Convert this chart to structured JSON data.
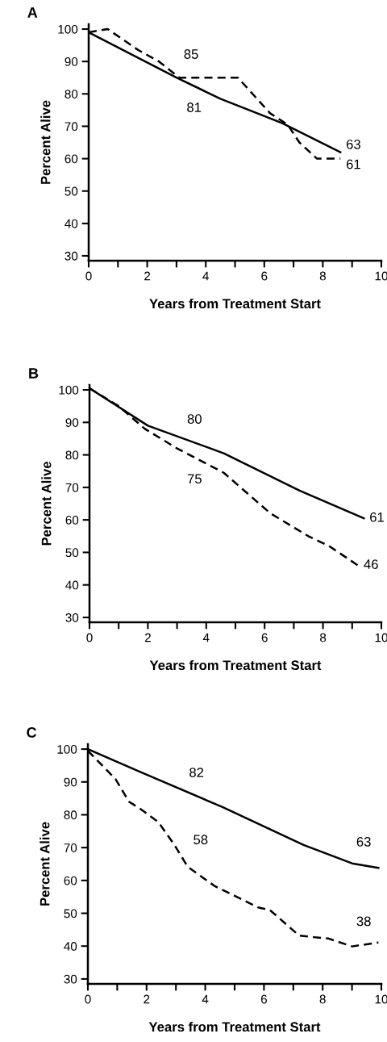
{
  "chart_data": [
    {
      "type": "line",
      "title": "A",
      "xlabel": "Years from Treatment Start",
      "ylabel": "Percent Alive",
      "xlim": [
        0,
        10
      ],
      "ylim": [
        28.5,
        101.5
      ],
      "xticks": [
        0,
        {
          "value": 1,
          "label": null
        },
        2,
        {
          "value": 3,
          "label": null
        },
        4,
        {
          "value": 5,
          "label": null
        },
        6,
        {
          "value": 7,
          "label": null
        },
        8,
        {
          "value": 9,
          "label": null
        },
        10
      ],
      "yticks": [
        30,
        40,
        50,
        60,
        70,
        80,
        90,
        100
      ],
      "grid": false,
      "legend": false,
      "series": [
        {
          "color": "#000000",
          "line_style": "solid",
          "x": [
            0,
            3,
            4.5,
            6.6,
            8.6
          ],
          "values": [
            99,
            85,
            78.5,
            71,
            62
          ]
        },
        {
          "color": "#000000",
          "line_style": "dashed",
          "x": [
            0,
            0.65,
            1.7,
            2.4,
            3.1,
            5.1,
            6.2,
            6.8,
            7.2,
            7.8,
            8.6
          ],
          "values": [
            99,
            100,
            93.5,
            90,
            85,
            85,
            74,
            70.5,
            65,
            60,
            60
          ]
        }
      ],
      "annotations": [
        {
          "text": "85",
          "x": 3.5,
          "y": 85
        },
        {
          "text": "81",
          "x": 3.6,
          "y": 82.4
        },
        {
          "text": "63",
          "x": 8.6,
          "y": 62
        },
        {
          "text": "61",
          "x": 8.6,
          "y": 60
        }
      ]
    },
    {
      "type": "line",
      "title": "B",
      "xlabel": "Years from Treatment Start",
      "ylabel": "Percent Alive",
      "xlim": [
        0,
        10
      ],
      "ylim": [
        28.5,
        101.5
      ],
      "xticks": [
        0,
        {
          "value": 1,
          "label": null
        },
        2,
        {
          "value": 3,
          "label": null
        },
        4,
        {
          "value": 5,
          "label": null
        },
        6,
        {
          "value": 7,
          "label": null
        },
        8,
        {
          "value": 9,
          "label": null
        },
        10
      ],
      "yticks": [
        30,
        40,
        50,
        60,
        70,
        80,
        90,
        100
      ],
      "grid": false,
      "legend": false,
      "series": [
        {
          "color": "#000000",
          "line_style": "solid",
          "x": [
            0,
            2,
            4.6,
            7.2,
            9.4
          ],
          "values": [
            100.5,
            89,
            80.5,
            69,
            60.5
          ]
        },
        {
          "color": "#000000",
          "line_style": "dashed",
          "x": [
            0,
            1.0,
            1.9,
            3,
            4.6,
            6.2,
            7.5,
            8.2,
            9.2
          ],
          "values": [
            100.5,
            95,
            88,
            82,
            74.5,
            62,
            55,
            52,
            46
          ]
        }
      ],
      "annotations": [
        {
          "text": "80",
          "x": 3.6,
          "y": 83.8
        },
        {
          "text": "75",
          "x": 3.6,
          "y": 79.2
        },
        {
          "text": "61",
          "x": 9.4,
          "y": 60.5
        },
        {
          "text": "46",
          "x": 9.2,
          "y": 46
        }
      ]
    },
    {
      "type": "line",
      "title": "C",
      "xlabel": "Years from Treatment Start",
      "ylabel": "Percent Alive",
      "xlim": [
        0,
        10
      ],
      "ylim": [
        28.5,
        101.5
      ],
      "xticks": [
        0,
        {
          "value": 1,
          "label": null
        },
        2,
        {
          "value": 3,
          "label": null
        },
        4,
        {
          "value": 5,
          "label": null
        },
        6,
        {
          "value": 7,
          "label": null
        },
        8,
        {
          "value": 9,
          "label": null
        },
        10
      ],
      "yticks": [
        30,
        40,
        50,
        60,
        70,
        80,
        90,
        100
      ],
      "grid": false,
      "legend": false,
      "series": [
        {
          "color": "#000000",
          "line_style": "solid",
          "x": [
            0,
            1.8,
            4.6,
            7.35,
            9.0,
            9.9
          ],
          "values": [
            100,
            93,
            82.3,
            70.8,
            65.2,
            63.8
          ]
        },
        {
          "color": "#000000",
          "line_style": "dashed",
          "x": [
            0,
            0.94,
            1.4,
            1.77,
            2.4,
            2.95,
            3.4,
            4.3,
            5.8,
            6.2,
            7.2,
            8.2,
            9.0,
            9.9
          ],
          "values": [
            99.5,
            90.9,
            84,
            81.9,
            77.8,
            70.8,
            64.2,
            58.4,
            51.8,
            51,
            43.2,
            42.3,
            39.9,
            41.1
          ]
        }
      ],
      "annotations": [
        {
          "text": "82",
          "x": 3.7,
          "y": 85.7
        },
        {
          "text": "58",
          "x": 2.9,
          "y": 71.4
        },
        {
          "text": "63",
          "x": 9.4,
          "y": 64.6
        },
        {
          "text": "38",
          "x": 9.4,
          "y": 40.4
        }
      ]
    }
  ]
}
